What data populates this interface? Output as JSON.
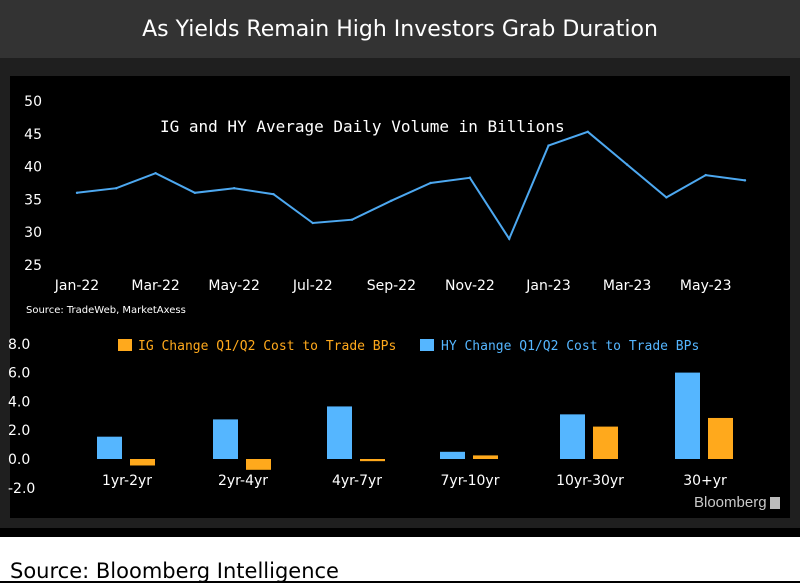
{
  "header": {
    "title": "As Yields Remain High Investors Grab Duration"
  },
  "footer": {
    "source": "Source: Bloomberg Intelligence"
  },
  "brand": {
    "name": "Bloomberg"
  },
  "colors": {
    "hy": "#55b6ff",
    "ig": "#ffa91c",
    "line": "#4da8f0"
  },
  "chart_data": [
    {
      "type": "line",
      "title": "IG and HY Average Daily Volume in Billions",
      "source_note": "Source: TradeWeb, MarketAxess",
      "x": [
        "Jan-22",
        "Feb-22",
        "Mar-22",
        "Apr-22",
        "May-22",
        "Jun-22",
        "Jul-22",
        "Aug-22",
        "Sep-22",
        "Oct-22",
        "Nov-22",
        "Dec-22",
        "Jan-23",
        "Feb-23",
        "Mar-23",
        "Apr-23",
        "May-23",
        "Jun-23"
      ],
      "x_tick_labels": [
        "Jan-22",
        "Mar-22",
        "May-22",
        "Jul-22",
        "Sep-22",
        "Nov-22",
        "Jan-23",
        "Mar-23",
        "May-23"
      ],
      "values": [
        36.0,
        36.7,
        39.0,
        36.0,
        36.7,
        35.8,
        31.4,
        31.9,
        34.8,
        37.5,
        38.3,
        29.0,
        43.2,
        45.3,
        40.3,
        35.3,
        38.7,
        37.9
      ],
      "ylim": [
        25,
        50
      ],
      "y_ticks": [
        "50",
        "45",
        "40",
        "35",
        "30",
        "25"
      ],
      "y_tick_values": [
        50,
        45,
        40,
        35,
        30,
        25
      ]
    },
    {
      "type": "bar",
      "categories": [
        "1yr-2yr",
        "2yr-4yr",
        "4yr-7yr",
        "7yr-10yr",
        "10yr-30yr",
        "30+yr"
      ],
      "series": [
        {
          "name": "HY Change Q1/Q2 Cost to Trade BPs",
          "values": [
            1.55,
            2.75,
            3.65,
            0.5,
            3.1,
            6.0
          ]
        },
        {
          "name": "IG Change Q1/Q2 Cost to Trade BPs",
          "values": [
            -0.45,
            -0.75,
            -0.15,
            0.25,
            2.25,
            2.85
          ]
        }
      ],
      "ylim": [
        -2.0,
        8.0
      ],
      "y_ticks": [
        "8.0",
        "6.0",
        "4.0",
        "2.0",
        "0.0",
        "-2.0"
      ],
      "y_tick_values": [
        8,
        6,
        4,
        2,
        0,
        -2
      ],
      "legend": "top"
    }
  ]
}
